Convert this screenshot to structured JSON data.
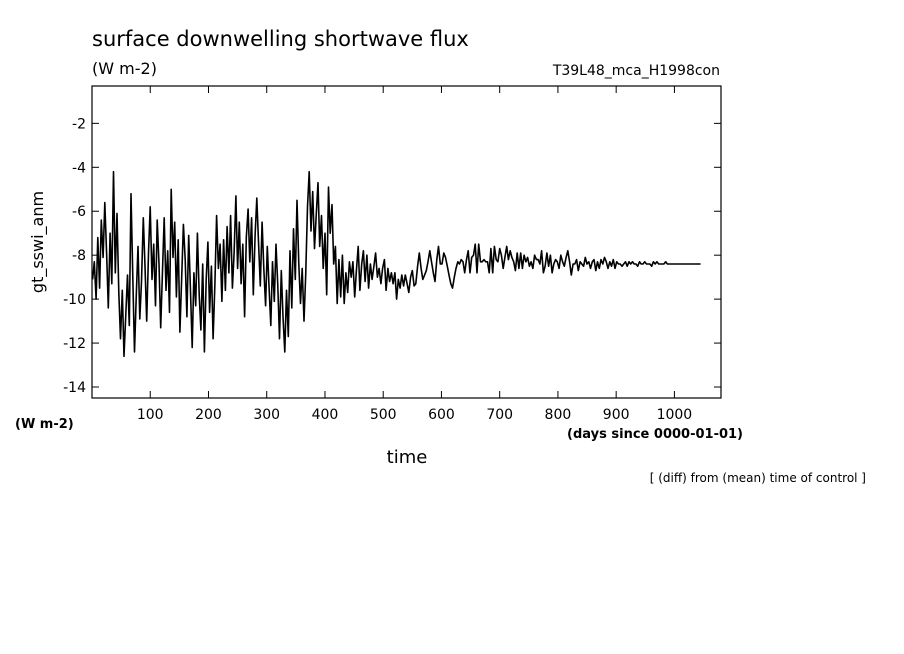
{
  "chart_data": {
    "type": "line",
    "title": "surface downwelling shortwave flux",
    "title_units": "(W m-2)",
    "run_label": "T39L48_mca_H1998con",
    "ylabel": "gt_sswi_anm",
    "yunits": "(W m-2)",
    "xlabel": "time",
    "xunits": "(days since 0000-01-01)",
    "footnote": "[ (diff) from (mean) time of control ]",
    "xlim": [
      0,
      1080
    ],
    "ylim": [
      -14.5,
      -0.3
    ],
    "x_ticks": [
      100,
      200,
      300,
      400,
      500,
      600,
      700,
      800,
      900,
      1000
    ],
    "y_ticks": [
      -14,
      -12,
      -10,
      -8,
      -6,
      -4,
      -2
    ],
    "grid": false,
    "line_color": "#000000",
    "x_start": 1,
    "x_step": 3,
    "series": [
      {
        "values": [
          -9.1,
          -8.3,
          -10.0,
          -7.2,
          -9.5,
          -6.4,
          -8.1,
          -5.6,
          -7.9,
          -10.4,
          -7.0,
          -9.3,
          -4.2,
          -8.8,
          -6.1,
          -9.7,
          -11.8,
          -9.6,
          -12.6,
          -10.7,
          -8.9,
          -11.2,
          -5.2,
          -9.0,
          -12.4,
          -9.8,
          -7.6,
          -10.9,
          -9.2,
          -6.3,
          -8.5,
          -11.0,
          -7.9,
          -5.8,
          -9.1,
          -7.5,
          -10.3,
          -6.4,
          -8.4,
          -11.3,
          -8.7,
          -6.3,
          -9.6,
          -7.8,
          -10.6,
          -5.0,
          -8.1,
          -6.5,
          -9.9,
          -7.3,
          -11.5,
          -9.0,
          -6.6,
          -8.2,
          -10.8,
          -7.1,
          -9.5,
          -12.2,
          -8.8,
          -10.3,
          -7.0,
          -9.8,
          -11.4,
          -8.4,
          -12.4,
          -9.1,
          -7.4,
          -10.6,
          -8.5,
          -11.8,
          -9.3,
          -6.2,
          -8.6,
          -7.5,
          -10.1,
          -7.3,
          -9.6,
          -6.7,
          -8.8,
          -6.2,
          -9.5,
          -7.9,
          -5.3,
          -8.6,
          -6.5,
          -9.3,
          -7.5,
          -10.8,
          -7.2,
          -5.9,
          -8.3,
          -6.3,
          -9.8,
          -7.1,
          -5.4,
          -7.5,
          -9.4,
          -6.5,
          -8.6,
          -10.3,
          -7.6,
          -9.5,
          -11.2,
          -8.3,
          -10.1,
          -7.5,
          -9.4,
          -11.8,
          -8.7,
          -10.8,
          -12.4,
          -9.6,
          -11.7,
          -7.8,
          -10.4,
          -6.8,
          -9.1,
          -5.5,
          -8.4,
          -10.2,
          -8.6,
          -11.0,
          -8.9,
          -5.8,
          -4.2,
          -6.9,
          -5.1,
          -7.7,
          -6.2,
          -4.7,
          -7.6,
          -6.2,
          -8.6,
          -7.0,
          -9.8,
          -4.9,
          -7.0,
          -5.7,
          -8.4,
          -7.6,
          -10.2,
          -8.2,
          -9.9,
          -8.0,
          -10.2,
          -8.8,
          -9.7,
          -8.3,
          -9.0,
          -8.3,
          -9.9,
          -8.7,
          -7.6,
          -9.6,
          -8.4,
          -7.8,
          -9.2,
          -8.0,
          -9.5,
          -8.4,
          -9.1,
          -8.5,
          -7.9,
          -9.0,
          -8.6,
          -9.3,
          -8.6,
          -8.2,
          -9.6,
          -8.6,
          -9.2,
          -8.8,
          -9.3,
          -8.8,
          -10.0,
          -9.1,
          -9.5,
          -8.9,
          -9.4,
          -8.9,
          -9.3,
          -9.7,
          -9.0,
          -8.7,
          -9.4,
          -9.3,
          -8.5,
          -7.9,
          -8.6,
          -9.1,
          -8.9,
          -8.7,
          -8.3,
          -7.8,
          -8.3,
          -8.8,
          -9.2,
          -8.2,
          -7.6,
          -8.4,
          -8.4,
          -7.9,
          -8.1,
          -8.5,
          -8.9,
          -9.3,
          -9.5,
          -9.0,
          -8.6,
          -8.3,
          -8.4,
          -8.2,
          -8.3,
          -8.8,
          -8.2,
          -7.8,
          -8.8,
          -8.1,
          -8.0,
          -7.5,
          -8.8,
          -7.5,
          -8.3,
          -8.3,
          -8.2,
          -8.3,
          -8.3,
          -8.8,
          -7.7,
          -8.8,
          -7.6,
          -8.2,
          -8.3,
          -7.7,
          -8.0,
          -8.6,
          -8.1,
          -7.6,
          -8.2,
          -7.8,
          -8.1,
          -8.3,
          -8.7,
          -7.9,
          -8.6,
          -7.9,
          -8.6,
          -8.0,
          -8.3,
          -8.1,
          -8.5,
          -8.3,
          -8.6,
          -8.0,
          -8.2,
          -8.2,
          -8.4,
          -7.8,
          -8.8,
          -8.5,
          -7.9,
          -8.5,
          -8.0,
          -8.8,
          -8.4,
          -8.2,
          -8.3,
          -8.6,
          -8.0,
          -8.3,
          -8.5,
          -8.1,
          -7.8,
          -8.3,
          -8.9,
          -8.4,
          -8.4,
          -8.2,
          -8.7,
          -8.3,
          -8.4,
          -8.5,
          -8.1,
          -8.4,
          -8.3,
          -8.6,
          -8.3,
          -8.2,
          -8.7,
          -8.3,
          -8.6,
          -8.2,
          -8.4,
          -8.1,
          -8.3,
          -8.6,
          -8.3,
          -8.5,
          -8.2,
          -8.6,
          -8.3,
          -8.4,
          -8.4,
          -8.5,
          -8.4,
          -8.3,
          -8.5,
          -8.3,
          -8.4,
          -8.3,
          -8.4,
          -8.4,
          -8.5,
          -8.3,
          -8.4,
          -8.4,
          -8.3,
          -8.4,
          -8.4,
          -8.4,
          -8.5,
          -8.3,
          -8.4,
          -8.3,
          -8.4,
          -8.4,
          -8.4,
          -8.4,
          -8.3,
          -8.4,
          -8.4,
          -8.4,
          -8.4,
          -8.4,
          -8.4,
          -8.4,
          -8.4,
          -8.4,
          -8.4,
          -8.4,
          -8.4,
          -8.4,
          -8.4,
          -8.4,
          -8.4,
          -8.4,
          -8.4,
          -8.4,
          -8.4
        ]
      }
    ]
  }
}
